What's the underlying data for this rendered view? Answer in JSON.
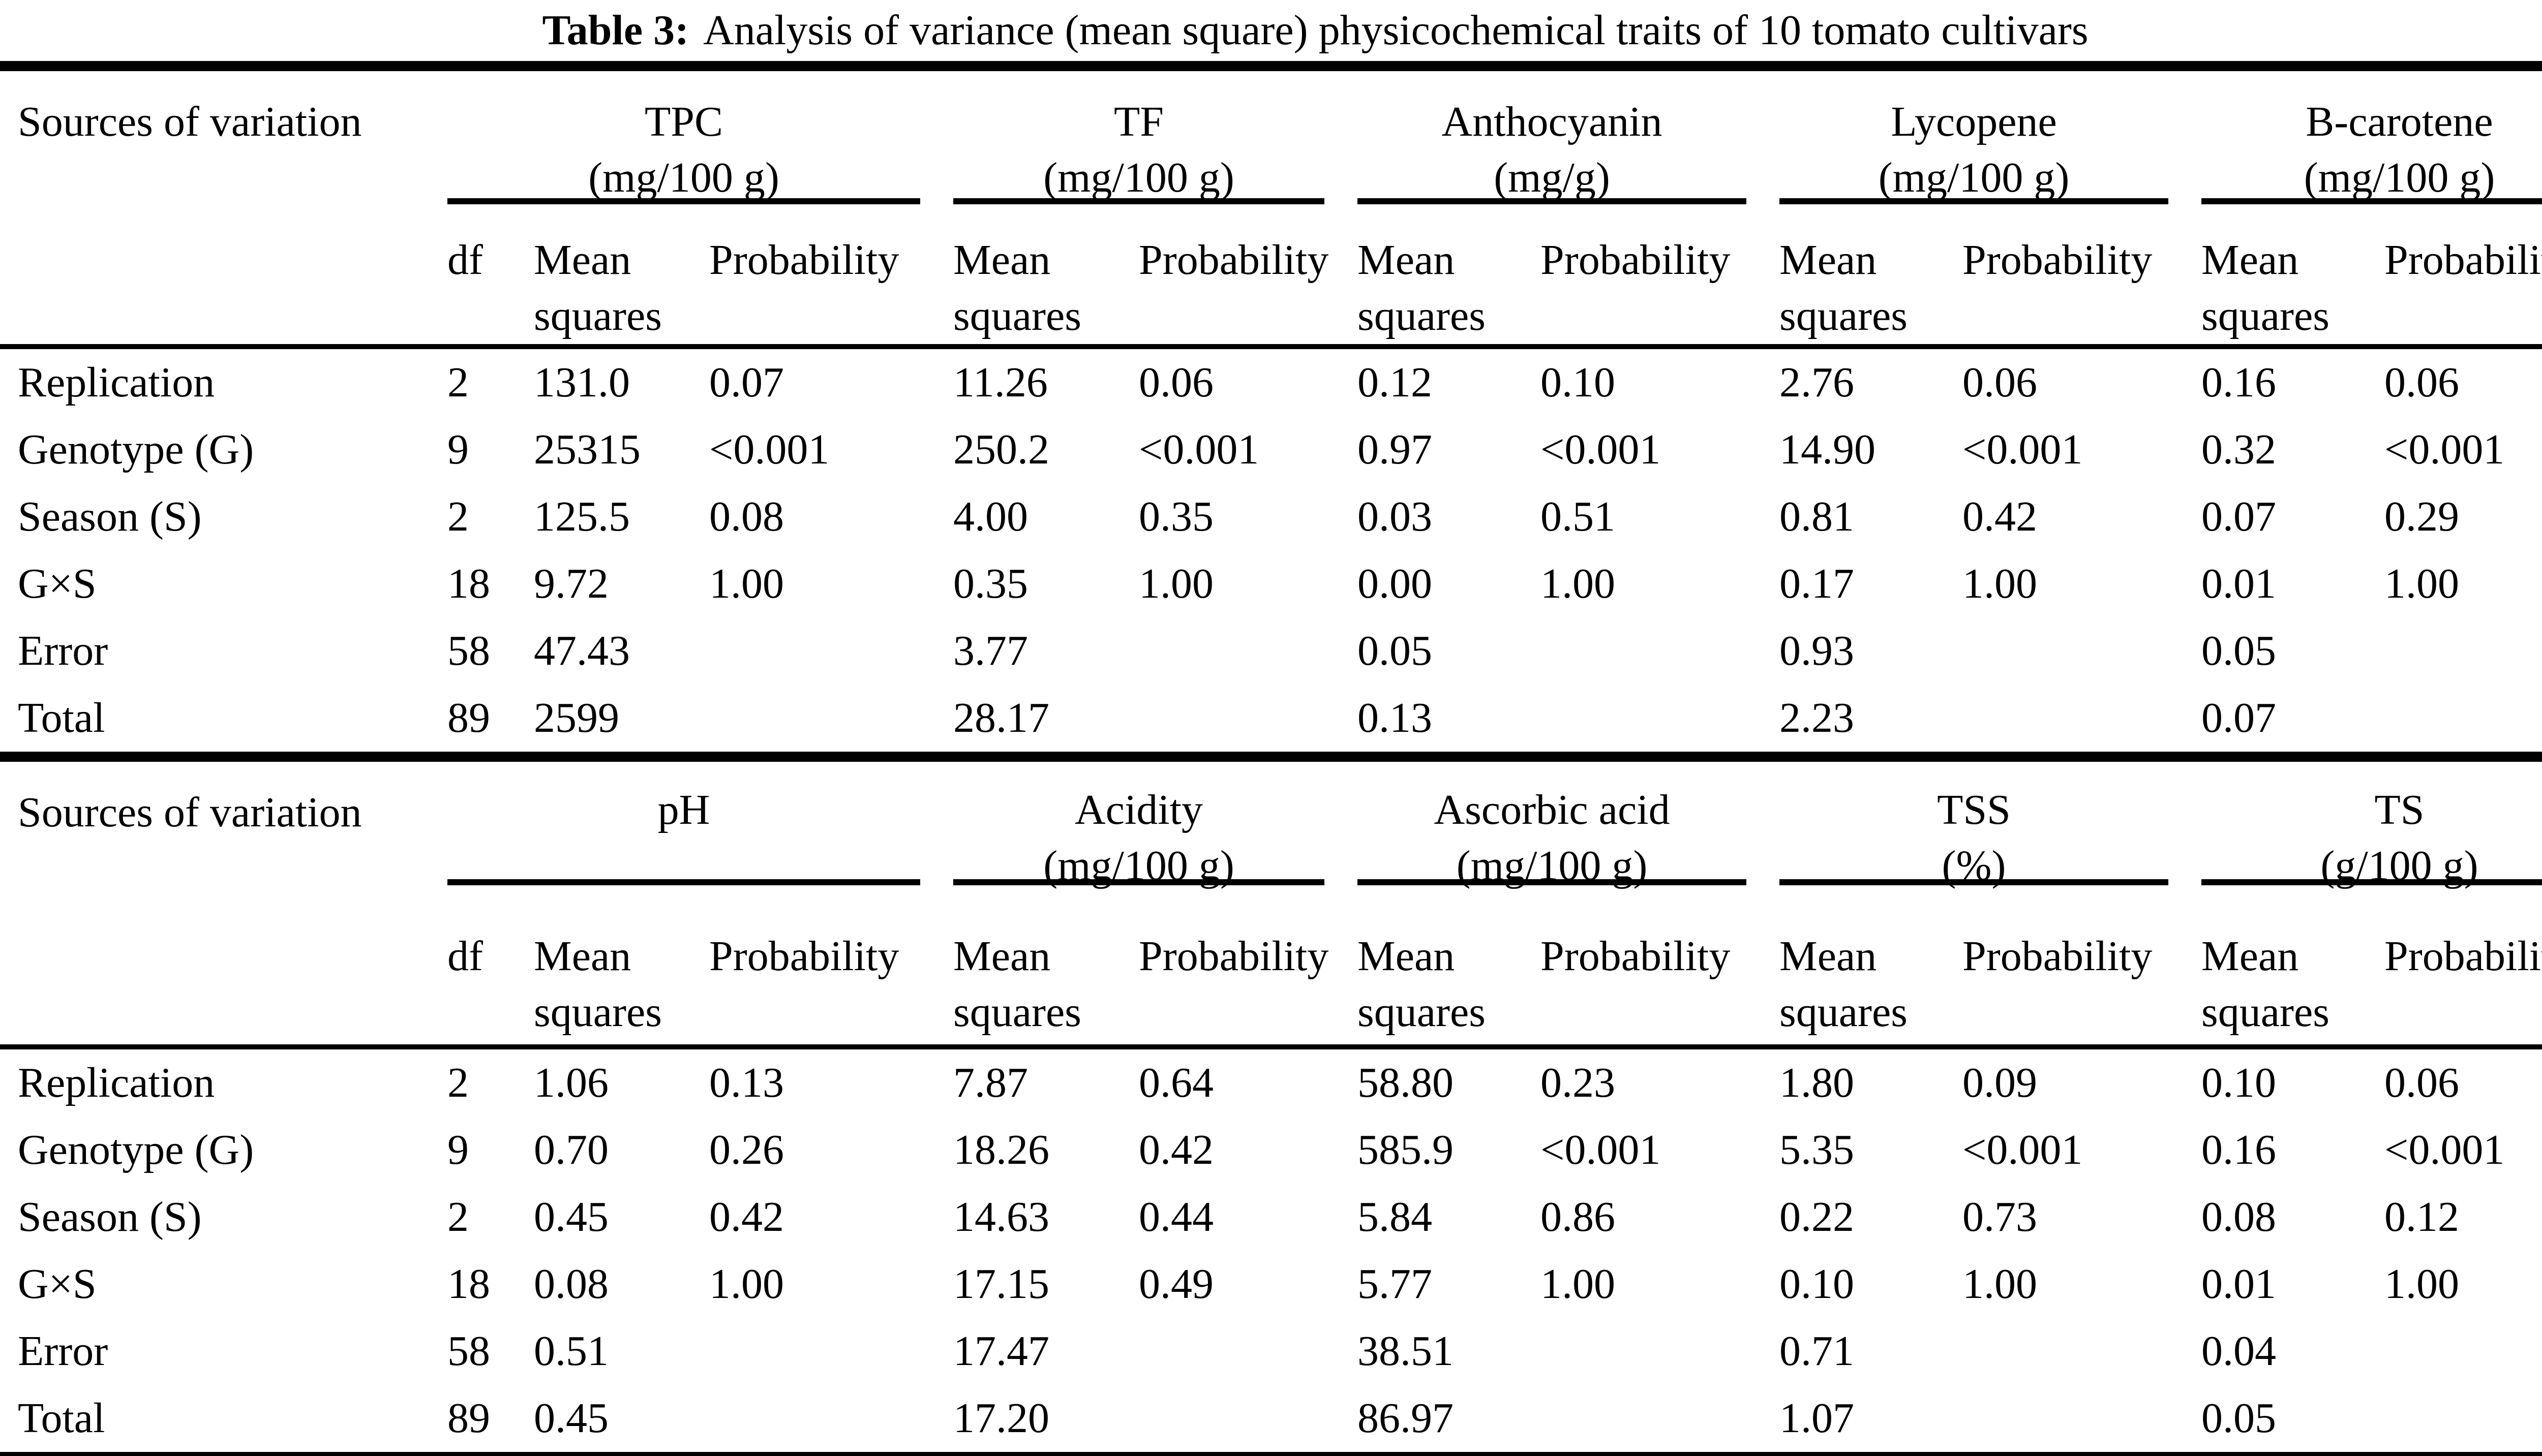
{
  "title": {
    "label": "Table 3:",
    "text": "Analysis of variance (mean square) physicochemical traits of 10 tomato cultivars"
  },
  "colors": {
    "text": "#000000",
    "background": "#ffffff",
    "rules": "#000000"
  },
  "headers": {
    "sources": "Sources of variation",
    "df": "df",
    "mean_line1": "Mean",
    "mean_line2": "squares",
    "probability": "Probability"
  },
  "tables": [
    {
      "groups": [
        {
          "name": "TPC",
          "unit": "(mg/100 g)"
        },
        {
          "name": "TF",
          "unit": "(mg/100 g)"
        },
        {
          "name": "Anthocyanin",
          "unit": "(mg/g)"
        },
        {
          "name": "Lycopene",
          "unit": "(mg/100 g)"
        },
        {
          "name": "B-carotene",
          "unit": "(mg/100 g)"
        }
      ],
      "rows": [
        {
          "source": "Replication",
          "df": "2",
          "values": [
            "131.0",
            "0.07",
            "11.26",
            "0.06",
            "0.12",
            "0.10",
            "2.76",
            "0.06",
            "0.16",
            "0.06"
          ]
        },
        {
          "source": "Genotype (G)",
          "df": "9",
          "values": [
            "25315",
            "<0.001",
            "250.2",
            "<0.001",
            "0.97",
            "<0.001",
            "14.90",
            "<0.001",
            "0.32",
            "<0.001"
          ]
        },
        {
          "source": "Season (S)",
          "df": "2",
          "values": [
            "125.5",
            "0.08",
            "4.00",
            "0.35",
            "0.03",
            "0.51",
            "0.81",
            "0.42",
            "0.07",
            "0.29"
          ]
        },
        {
          "source": "G×S",
          "df": "18",
          "values": [
            "9.72",
            "1.00",
            "0.35",
            "1.00",
            "0.00",
            "1.00",
            "0.17",
            "1.00",
            "0.01",
            "1.00"
          ]
        },
        {
          "source": "Error",
          "df": "58",
          "values": [
            "47.43",
            "",
            "3.77",
            "",
            "0.05",
            "",
            "0.93",
            "",
            "0.05",
            ""
          ]
        },
        {
          "source": "Total",
          "df": "89",
          "values": [
            "2599",
            "",
            "28.17",
            "",
            "0.13",
            "",
            "2.23",
            "",
            "0.07",
            ""
          ]
        }
      ]
    },
    {
      "groups": [
        {
          "name": "pH",
          "unit": ""
        },
        {
          "name": "Acidity",
          "unit": "(mg/100 g)"
        },
        {
          "name": "Ascorbic acid",
          "unit": "(mg/100 g)"
        },
        {
          "name": "TSS",
          "unit": "(%)"
        },
        {
          "name": "TS",
          "unit": "(g/100 g)"
        }
      ],
      "rows": [
        {
          "source": "Replication",
          "df": "2",
          "values": [
            "1.06",
            "0.13",
            "7.87",
            "0.64",
            "58.80",
            "0.23",
            "1.80",
            "0.09",
            "0.10",
            "0.06"
          ]
        },
        {
          "source": "Genotype (G)",
          "df": "9",
          "values": [
            "0.70",
            "0.26",
            "18.26",
            "0.42",
            "585.9",
            "<0.001",
            "5.35",
            "<0.001",
            "0.16",
            "<0.001"
          ]
        },
        {
          "source": "Season (S)",
          "df": "2",
          "values": [
            "0.45",
            "0.42",
            "14.63",
            "0.44",
            "5.84",
            "0.86",
            "0.22",
            "0.73",
            "0.08",
            "0.12"
          ]
        },
        {
          "source": "G×S",
          "df": "18",
          "values": [
            "0.08",
            "1.00",
            "17.15",
            "0.49",
            "5.77",
            "1.00",
            "0.10",
            "1.00",
            "0.01",
            "1.00"
          ]
        },
        {
          "source": "Error",
          "df": "58",
          "values": [
            "0.51",
            "",
            "17.47",
            "",
            "38.51",
            "",
            "0.71",
            "",
            "0.04",
            ""
          ]
        },
        {
          "source": "Total",
          "df": "89",
          "values": [
            "0.45",
            "",
            "17.20",
            "",
            "86.97",
            "",
            "1.07",
            "",
            "0.05",
            ""
          ]
        }
      ]
    }
  ]
}
